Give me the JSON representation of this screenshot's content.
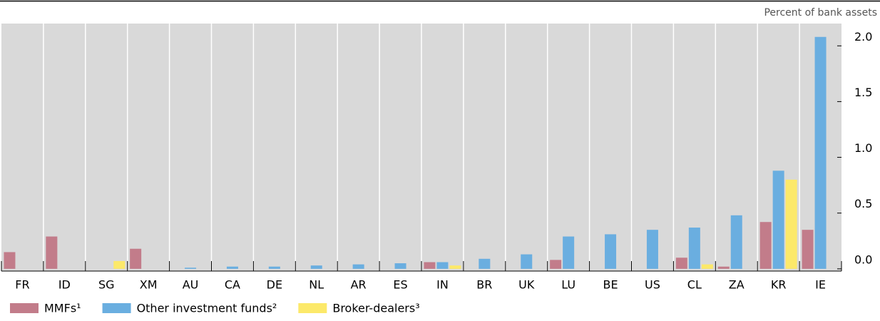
{
  "chart_data": {
    "type": "bar",
    "subtitle": "Percent of bank assets",
    "categories": [
      "FR",
      "ID",
      "SG",
      "XM",
      "AU",
      "CA",
      "DE",
      "NL",
      "AR",
      "ES",
      "IN",
      "BR",
      "UK",
      "LU",
      "BE",
      "US",
      "CL",
      "ZA",
      "KR",
      "IE"
    ],
    "series": [
      {
        "name": "MMFs¹",
        "color": "#c27c8a",
        "values": [
          0.15,
          0.29,
          0,
          0.18,
          0,
          0,
          0,
          0,
          0,
          0,
          0.06,
          0,
          0,
          0.08,
          0,
          0,
          0.1,
          0.02,
          0.42,
          0.35
        ]
      },
      {
        "name": "Other investment funds²",
        "color": "#6aaee0",
        "values": [
          0,
          0,
          0,
          0,
          0.01,
          0.02,
          0.02,
          0.03,
          0.04,
          0.05,
          0.06,
          0.09,
          0.13,
          0.29,
          0.31,
          0.35,
          0.37,
          0.48,
          0.88,
          2.08
        ]
      },
      {
        "name": "Broker-dealers³",
        "color": "#fce96a",
        "values": [
          0,
          0,
          0.07,
          0,
          0,
          0,
          0,
          0,
          0,
          0,
          0.03,
          0,
          0,
          0,
          0,
          0,
          0.04,
          0,
          0.8,
          0
        ]
      }
    ],
    "ylim": [
      -0.02,
      2.2
    ],
    "yticks": [
      {
        "value": 0,
        "label": "0.0"
      },
      0.5,
      {
        "value": 1,
        "label": "1.0"
      },
      1.5,
      {
        "value": 2,
        "label": "2.0"
      }
    ],
    "grid": false
  }
}
